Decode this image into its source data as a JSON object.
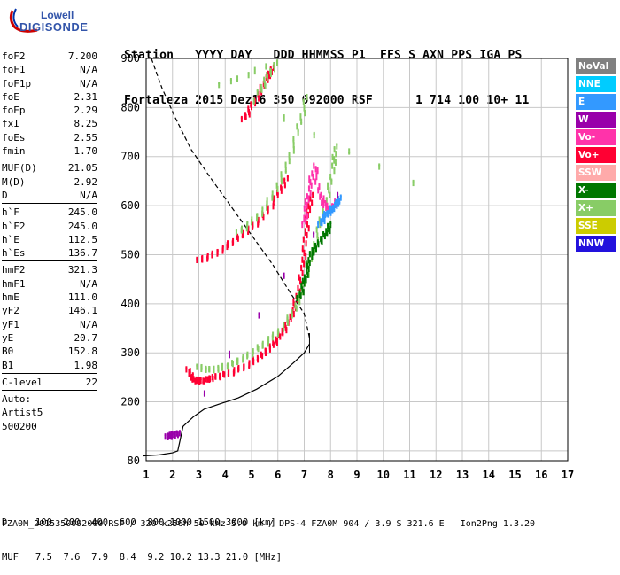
{
  "logo": {
    "line1": "Lowell",
    "line2": "DIGISONDE"
  },
  "header": {
    "labels": "Station   YYYY DAY   DDD HHMMSS P1  FFS S AXN PPS IGA PS",
    "values": "Fortaleza 2015 Dez16 350 092000 RSF      1 714 100 10+ 11"
  },
  "params": [
    [
      {
        "k": "foF2",
        "v": "7.200"
      },
      {
        "k": "foF1",
        "v": "N/A"
      },
      {
        "k": "foF1p",
        "v": "N/A"
      },
      {
        "k": "foE",
        "v": "2.31"
      },
      {
        "k": "foEp",
        "v": "2.29"
      },
      {
        "k": "fxI",
        "v": "8.25"
      },
      {
        "k": "foEs",
        "v": "2.55"
      },
      {
        "k": "fmin",
        "v": "1.70"
      }
    ],
    [
      {
        "k": "MUF(D)",
        "v": "21.05"
      },
      {
        "k": "M(D)",
        "v": "2.92"
      },
      {
        "k": "D",
        "v": "N/A"
      }
    ],
    [
      {
        "k": "h`F",
        "v": "245.0"
      },
      {
        "k": "h`F2",
        "v": "245.0"
      },
      {
        "k": "h`E",
        "v": "112.5"
      },
      {
        "k": "h`Es",
        "v": "136.7"
      }
    ],
    [
      {
        "k": "hmF2",
        "v": "321.3"
      },
      {
        "k": "hmF1",
        "v": "N/A"
      },
      {
        "k": "hmE",
        "v": "111.0"
      },
      {
        "k": "yF2",
        "v": "146.1"
      },
      {
        "k": "yF1",
        "v": "N/A"
      },
      {
        "k": "yE",
        "v": "20.7"
      },
      {
        "k": "B0",
        "v": "152.8"
      },
      {
        "k": "B1",
        "v": "1.98"
      }
    ],
    [
      {
        "k": "C-level",
        "v": "22"
      }
    ],
    [
      {
        "k": "Auto:",
        "v": ""
      },
      {
        "k": "Artist5",
        "v": ""
      },
      {
        "k": "500200",
        "v": ""
      }
    ]
  ],
  "legend": [
    {
      "label": "NoVal",
      "color": "#808080"
    },
    {
      "label": "NNE",
      "color": "#00ccff"
    },
    {
      "label": "E",
      "color": "#3399ff"
    },
    {
      "label": "W",
      "color": "#9900aa"
    },
    {
      "label": "Vo-",
      "color": "#ff33aa"
    },
    {
      "label": "Vo+",
      "color": "#ff0033"
    },
    {
      "label": "SSW",
      "color": "#ffaaaa"
    },
    {
      "label": "X-",
      "color": "#007700"
    },
    {
      "label": "X+",
      "color": "#88cc66"
    },
    {
      "label": "SSE",
      "color": "#cccc00"
    },
    {
      "label": "NNW",
      "color": "#2211dd"
    }
  ],
  "footer": {
    "d_line": "D     100  200  400  600  800 1000 1500 3000 [km]",
    "muf_line": "MUF   7.5  7.6  7.9  8.4  9.2 10.2 13.3 21.0 [MHz]",
    "filename": "FZA0M_2015350092000.RSF / 320fx256h 50 kHz 5.0 km / DPS-4 FZA0M 904 / 3.9 S 321.6 E   Ion2Png 1.3.20"
  },
  "chart_data": {
    "type": "scatter",
    "xlim": [
      1,
      17
    ],
    "ylim": [
      80,
      900
    ],
    "xticks": [
      1,
      2,
      3,
      4,
      5,
      6,
      7,
      8,
      9,
      10,
      11,
      12,
      13,
      14,
      15,
      16,
      17
    ],
    "yticks": [
      100,
      200,
      300,
      400,
      500,
      600,
      700,
      800,
      900
    ],
    "ytick_labels": [
      "",
      "200",
      "300",
      "400",
      "500",
      "600",
      "700",
      "800",
      "900"
    ],
    "y_origin_label": "80",
    "grid": true,
    "traces": [
      {
        "name": "Vo+",
        "color": "#ff0033",
        "points": [
          [
            2.6,
            265
          ],
          [
            2.8,
            245
          ],
          [
            3.0,
            242
          ],
          [
            3.3,
            245
          ],
          [
            3.6,
            250
          ],
          [
            4.0,
            255
          ],
          [
            4.5,
            265
          ],
          [
            5.0,
            280
          ],
          [
            5.4,
            295
          ],
          [
            5.8,
            315
          ],
          [
            6.1,
            335
          ],
          [
            6.4,
            360
          ],
          [
            6.6,
            390
          ],
          [
            6.8,
            430
          ],
          [
            6.95,
            480
          ],
          [
            7.05,
            530
          ],
          [
            7.15,
            580
          ],
          [
            7.25,
            620
          ]
        ]
      },
      {
        "name": "X+",
        "color": "#88cc66",
        "points": [
          [
            3.0,
            270
          ],
          [
            3.4,
            265
          ],
          [
            3.8,
            268
          ],
          [
            4.3,
            278
          ],
          [
            4.8,
            292
          ],
          [
            5.3,
            310
          ],
          [
            5.8,
            330
          ],
          [
            6.3,
            360
          ],
          [
            6.7,
            395
          ],
          [
            7.0,
            440
          ],
          [
            7.3,
            500
          ],
          [
            7.6,
            560
          ],
          [
            7.9,
            620
          ],
          [
            8.1,
            680
          ],
          [
            8.2,
            720
          ]
        ]
      },
      {
        "name": "X-",
        "color": "#007700",
        "points": [
          [
            6.8,
            410
          ],
          [
            7.0,
            440
          ],
          [
            7.1,
            470
          ],
          [
            7.25,
            500
          ],
          [
            7.5,
            520
          ],
          [
            7.8,
            540
          ],
          [
            8.0,
            560
          ]
        ]
      },
      {
        "name": "Vo-",
        "color": "#ff33aa",
        "points": [
          [
            7.0,
            560
          ],
          [
            7.1,
            600
          ],
          [
            7.2,
            640
          ],
          [
            7.4,
            680
          ],
          [
            7.6,
            620
          ],
          [
            7.8,
            600
          ],
          [
            8.0,
            590
          ],
          [
            8.2,
            610
          ]
        ]
      },
      {
        "name": "E",
        "color": "#3399ff",
        "points": [
          [
            7.6,
            560
          ],
          [
            7.8,
            580
          ],
          [
            8.0,
            590
          ],
          [
            8.2,
            600
          ],
          [
            8.35,
            615
          ]
        ]
      },
      {
        "name": "W",
        "color": "#9900aa",
        "points": [
          [
            1.8,
            128
          ],
          [
            2.0,
            132
          ],
          [
            2.2,
            135
          ],
          [
            8.3,
            620
          ]
        ]
      },
      {
        "name": "Vo+ multi",
        "color": "#ff0033",
        "points": [
          [
            3.0,
            488
          ],
          [
            3.5,
            498
          ],
          [
            4.0,
            515
          ],
          [
            4.5,
            535
          ],
          [
            5.0,
            555
          ],
          [
            5.5,
            580
          ],
          [
            6.0,
            620
          ],
          [
            6.3,
            655
          ]
        ]
      },
      {
        "name": "X+ multi",
        "color": "#88cc66",
        "points": [
          [
            4.5,
            545
          ],
          [
            5.0,
            565
          ],
          [
            5.5,
            595
          ],
          [
            6.0,
            640
          ],
          [
            6.4,
            690
          ],
          [
            6.8,
            760
          ],
          [
            7.1,
            820
          ]
        ]
      },
      {
        "name": "Vo+ top",
        "color": "#ff0033",
        "points": [
          [
            4.7,
            775
          ],
          [
            5.0,
            800
          ],
          [
            5.3,
            830
          ],
          [
            5.6,
            860
          ],
          [
            5.8,
            880
          ]
        ]
      },
      {
        "name": "X+ top",
        "color": "#88cc66",
        "points": [
          [
            5.3,
            830
          ],
          [
            5.6,
            860
          ],
          [
            5.9,
            890
          ],
          [
            3.8,
            845
          ],
          [
            11.1,
            645
          ]
        ]
      }
    ],
    "profile_curve": {
      "color": "#000000",
      "dash": false,
      "points": [
        [
          0.9,
          90
        ],
        [
          1.5,
          92
        ],
        [
          2.0,
          96
        ],
        [
          2.2,
          100
        ],
        [
          2.4,
          150
        ],
        [
          2.8,
          170
        ],
        [
          3.2,
          185
        ],
        [
          3.8,
          196
        ],
        [
          4.5,
          208
        ],
        [
          5.2,
          226
        ],
        [
          6.0,
          252
        ],
        [
          6.6,
          280
        ],
        [
          7.0,
          300
        ],
        [
          7.2,
          318
        ]
      ]
    },
    "muf_curve": {
      "color": "#000000",
      "dash": true,
      "points": [
        [
          1.2,
          900
        ],
        [
          1.6,
          840
        ],
        [
          2.1,
          780
        ],
        [
          2.7,
          715
        ],
        [
          3.4,
          660
        ],
        [
          4.2,
          600
        ],
        [
          5.0,
          540
        ],
        [
          5.8,
          480
        ],
        [
          6.5,
          420
        ],
        [
          7.0,
          380
        ],
        [
          7.2,
          330
        ]
      ]
    },
    "vertical_line": {
      "x": 7.2,
      "y1": 300,
      "y2": 340
    }
  }
}
